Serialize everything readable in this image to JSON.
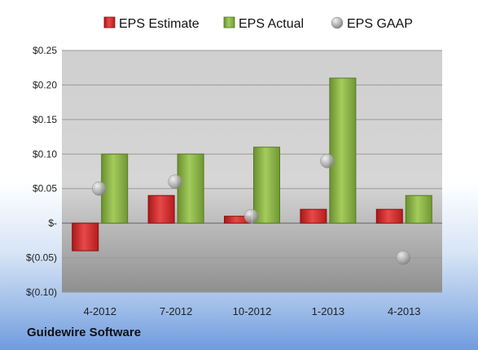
{
  "caption": "Guidewire Software",
  "chart_data": {
    "type": "bar",
    "title": "",
    "xlabel": "",
    "ylabel": "",
    "categories": [
      "4-2012",
      "7-2012",
      "10-2012",
      "1-2013",
      "4-2013"
    ],
    "series": [
      {
        "name": "EPS Estimate",
        "kind": "bar",
        "color": "#d42c2c",
        "values": [
          -0.04,
          0.04,
          0.01,
          0.02,
          0.02
        ]
      },
      {
        "name": "EPS Actual",
        "kind": "bar",
        "color": "#86b043",
        "values": [
          0.1,
          0.1,
          0.11,
          0.21,
          0.04
        ]
      },
      {
        "name": "EPS GAAP",
        "kind": "scatter",
        "color": "#b5b5b5",
        "values": [
          0.05,
          0.06,
          0.01,
          0.09,
          -0.05
        ]
      }
    ],
    "ylim": [
      -0.1,
      0.25
    ],
    "yticks": [
      0.25,
      0.2,
      0.15,
      0.1,
      0.05,
      0.0,
      -0.05,
      -0.1
    ],
    "ytick_labels": [
      "$0.25",
      "$0.20",
      "$0.15",
      "$0.10",
      "$0.05",
      "$-",
      "$(0.05)",
      "$(0.10)"
    ],
    "grid": true,
    "legend_position": "top"
  }
}
